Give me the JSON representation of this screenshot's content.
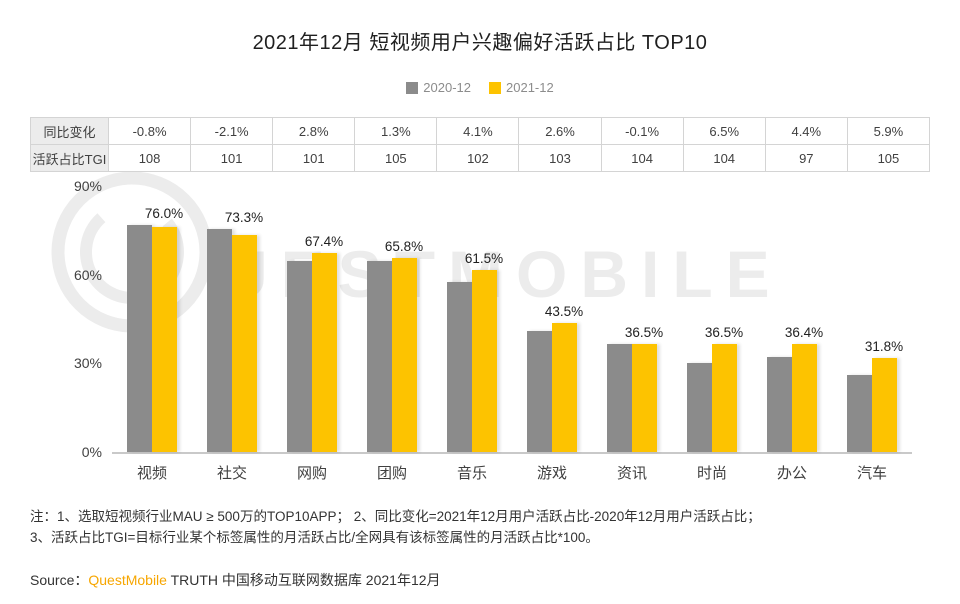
{
  "chart_data": {
    "type": "bar",
    "title": "2021年12月 短视频用户兴趣偏好活跃占比 TOP10",
    "categories": [
      "视频",
      "社交",
      "网购",
      "团购",
      "音乐",
      "游戏",
      "资讯",
      "时尚",
      "办公",
      "汽车"
    ],
    "series": [
      {
        "name": "2020-12",
        "color": "#8b8b8b",
        "values": [
          76.8,
          75.4,
          64.6,
          64.5,
          57.4,
          40.9,
          36.6,
          30.0,
          32.0,
          25.9
        ]
      },
      {
        "name": "2021-12",
        "color": "#fdc300",
        "values": [
          76.0,
          73.3,
          67.4,
          65.8,
          61.5,
          43.5,
          36.5,
          36.5,
          36.4,
          31.8
        ]
      }
    ],
    "data_labels": [
      "76.0%",
      "73.3%",
      "67.4%",
      "65.8%",
      "61.5%",
      "43.5%",
      "36.5%",
      "36.5%",
      "36.4%",
      "31.8%"
    ],
    "yticks": [
      "90%",
      "60%",
      "30%",
      "0%"
    ],
    "ylim": [
      0,
      90
    ],
    "grid": false,
    "legend_position": "top",
    "table": {
      "row_headers": [
        "同比变化",
        "活跃占比TGI"
      ],
      "rows": [
        [
          "-0.8%",
          "-2.1%",
          "2.8%",
          "1.3%",
          "4.1%",
          "2.6%",
          "-0.1%",
          "6.5%",
          "4.4%",
          "5.9%"
        ],
        [
          "108",
          "101",
          "101",
          "105",
          "102",
          "103",
          "104",
          "104",
          "97",
          "105"
        ]
      ]
    }
  },
  "notes": {
    "line1": "注：1、选取短视频行业MAU ≥ 500万的TOP10APP；  2、同比变化=2021年12月用户活跃占比-2020年12月用户活跃占比；",
    "line2": "3、活跃占比TGI=目标行业某个标签属性的月活跃占比/全网具有该标签属性的月活跃占比*100。"
  },
  "source": {
    "prefix": "Source：",
    "brand": "QuestMobile",
    "suffix": " TRUTH 中国移动互联网数据库 2021年12月",
    "brand_color": "#f7a600"
  },
  "watermark": {
    "text": "UESTMOBILE"
  }
}
